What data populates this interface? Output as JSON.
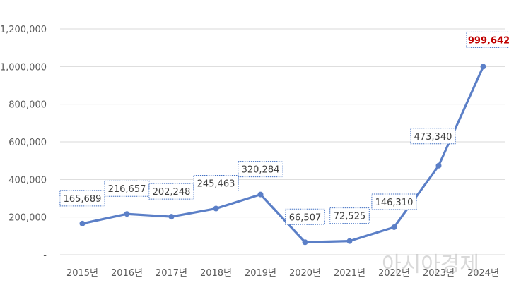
{
  "chart_data": {
    "type": "line",
    "categories": [
      "2015년",
      "2016년",
      "2017년",
      "2018년",
      "2019년",
      "2020년",
      "2021년",
      "2022년",
      "2023년",
      "2024년"
    ],
    "series": [
      {
        "values": [
          165689,
          216657,
          202248,
          245463,
          320284,
          66507,
          72525,
          146310,
          473340,
          999642
        ],
        "data_labels": [
          "165,689",
          "216,657",
          "202,248",
          "245,463",
          "320,284",
          "66,507",
          "72,525",
          "146,310",
          "473,340",
          "999,642"
        ],
        "color": "#5b7fc7"
      }
    ],
    "yticks": [
      "-",
      "200,000",
      "400,000",
      "600,000",
      "800,000",
      "1,000,000",
      "1,200,000"
    ],
    "ylim": [
      0,
      1200000
    ],
    "grid": true,
    "highlight": {
      "index": 9,
      "color": "#c00000"
    },
    "watermark": "아시아경제"
  }
}
